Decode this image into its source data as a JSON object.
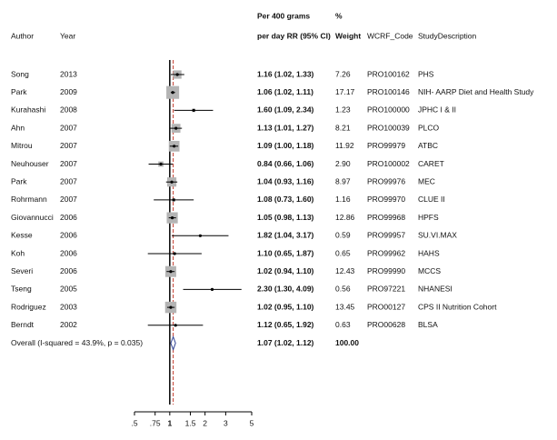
{
  "chart_data": {
    "type": "forest",
    "header_notes": [
      "Per 400 grams",
      "%"
    ],
    "column_headers": [
      "Author",
      "Year",
      "per day RR (95% CI)",
      "Weight",
      "WCRF_Code",
      "StudyDescription"
    ],
    "authors": [
      "Song",
      "Park",
      "Kurahashi",
      "Ahn",
      "Mitrou",
      "Neuhouser",
      "Park",
      "Rohrmann",
      "Giovannucci",
      "Kesse",
      "Koh",
      "Severi",
      "Tseng",
      "Rodriguez",
      "Berndt"
    ],
    "years": [
      2013,
      2009,
      2008,
      2007,
      2007,
      2007,
      2007,
      2007,
      2006,
      2006,
      2006,
      2006,
      2005,
      2003,
      2002
    ],
    "rr": [
      1.16,
      1.06,
      1.6,
      1.13,
      1.09,
      0.84,
      1.04,
      1.08,
      1.05,
      1.82,
      1.1,
      1.02,
      2.3,
      1.02,
      1.12
    ],
    "ci_low": [
      1.02,
      1.02,
      1.09,
      1.01,
      1.0,
      0.66,
      0.93,
      0.73,
      0.98,
      1.04,
      0.65,
      0.94,
      1.3,
      0.95,
      0.65
    ],
    "ci_high": [
      1.33,
      1.11,
      2.34,
      1.27,
      1.18,
      1.06,
      1.16,
      1.6,
      1.13,
      3.17,
      1.87,
      1.1,
      4.09,
      1.1,
      1.92
    ],
    "rr_labels": [
      "1.16 (1.02, 1.33)",
      "1.06 (1.02, 1.11)",
      "1.60 (1.09, 2.34)",
      "1.13 (1.01, 1.27)",
      "1.09 (1.00, 1.18)",
      "0.84 (0.66, 1.06)",
      "1.04 (0.93, 1.16)",
      "1.08 (0.73, 1.60)",
      "1.05 (0.98, 1.13)",
      "1.82 (1.04, 3.17)",
      "1.10 (0.65, 1.87)",
      "1.02 (0.94, 1.10)",
      "2.30 (1.30, 4.09)",
      "1.02 (0.95, 1.10)",
      "1.12 (0.65, 1.92)"
    ],
    "weights": [
      7.26,
      17.17,
      1.23,
      8.21,
      11.92,
      2.9,
      8.97,
      1.16,
      12.86,
      0.59,
      0.65,
      12.43,
      0.56,
      13.45,
      0.63
    ],
    "weight_labels": [
      "7.26",
      "17.17",
      "1.23",
      "8.21",
      "11.92",
      "2.90",
      "8.97",
      "1.16",
      "12.86",
      "0.59",
      "0.65",
      "12.43",
      "0.56",
      "13.45",
      "0.63"
    ],
    "codes": [
      "PRO100162",
      "PRO100146",
      "PRO100000",
      "PRO100039",
      "PRO99979",
      "PRO100002",
      "PRO99976",
      "PRO99970",
      "PRO99968",
      "PRO99957",
      "PRO99962",
      "PRO99990",
      "PRO97221",
      "PRO00127",
      "PRO00628"
    ],
    "descriptions": [
      "PHS",
      "NIH- AARP Diet and Health Study",
      "JPHC I & II",
      "PLCO",
      "ATBC",
      "CARET",
      "MEC",
      "CLUE II",
      "HPFS",
      "SU.VI.MAX",
      "HAHS",
      "MCCS",
      "NHANESI",
      "CPS II Nutrition Cohort",
      "BLSA"
    ],
    "overall": {
      "label": "Overall  (I-squared = 43.9%, p = 0.035)",
      "rr": 1.07,
      "ci_low": 1.02,
      "ci_high": 1.12,
      "rr_label": "1.07 (1.02, 1.12)",
      "weight": 100,
      "weight_label": "100.00"
    },
    "null_line": 1,
    "log_x": true,
    "xlim": [
      0.5,
      5
    ],
    "xticks": [
      {
        "value": 0.5,
        "label": ".5"
      },
      {
        "value": 0.75,
        "label": ".75"
      },
      1,
      1.5,
      2,
      3,
      5
    ],
    "box_color": "#b4b4b4",
    "ref_color": "#c0392b",
    "diamond_color": "#2c3e90"
  }
}
